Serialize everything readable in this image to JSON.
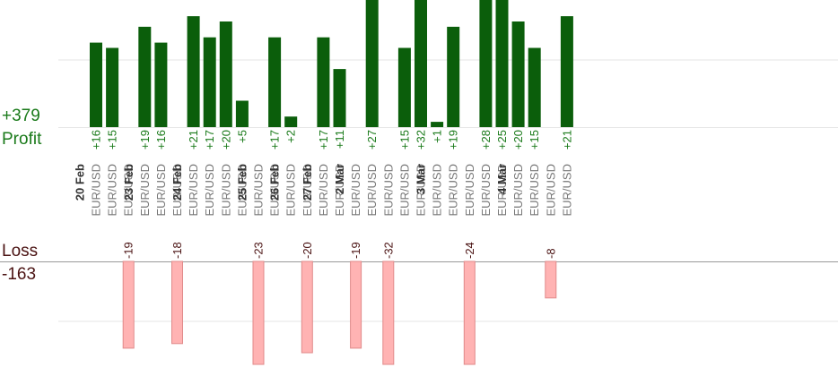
{
  "summary": {
    "profit_total": "+379",
    "profit_label": "Profit",
    "loss_label": "Loss",
    "loss_total": "-163"
  },
  "colors": {
    "profit_bar": "#0b5e0b",
    "loss_bar": "#ffb3b3",
    "loss_bar_border": "#e08a8a",
    "profit_text": "#1a7a1a",
    "loss_text": "#4a1212",
    "grid": "#e6e6e6",
    "baseline": "#999999"
  },
  "chart_data": {
    "type": "bar",
    "grid": true,
    "note_truncated_bars": "bars at the top/bottom edge are clipped in the image",
    "columns": [
      {
        "date": "20 Feb",
        "pair": "EUR/USD",
        "value": 16
      },
      {
        "date": "",
        "pair": "EUR/USD",
        "value": 15
      },
      {
        "date": "",
        "pair": "EUR/USD",
        "value": -19
      },
      {
        "date": "23 Feb",
        "pair": "EUR/USD",
        "value": 19
      },
      {
        "date": "",
        "pair": "EUR/USD",
        "value": 16
      },
      {
        "date": "",
        "pair": "EUR/USD",
        "value": -18
      },
      {
        "date": "24 Feb",
        "pair": "EUR/USD",
        "value": 21
      },
      {
        "date": "",
        "pair": "EUR/USD",
        "value": 17
      },
      {
        "date": "",
        "pair": "EUR/USD",
        "value": 20
      },
      {
        "date": "",
        "pair": "EUR/USD",
        "value": 5
      },
      {
        "date": "25 Feb",
        "pair": "EUR/USD",
        "value": -23
      },
      {
        "date": "",
        "pair": "EUR/USD",
        "value": 17
      },
      {
        "date": "26 Feb",
        "pair": "EUR/USD",
        "value": 2
      },
      {
        "date": "",
        "pair": "EUR/USD",
        "value": -20
      },
      {
        "date": "27 Feb",
        "pair": "EUR/USD",
        "value": 17
      },
      {
        "date": "",
        "pair": "EUR/USD",
        "value": 11
      },
      {
        "date": "2 Mar",
        "pair": "EUR/USD",
        "value": -19
      },
      {
        "date": "",
        "pair": "EUR/USD",
        "value": 27
      },
      {
        "date": "",
        "pair": "EUR/USD",
        "value": -32
      },
      {
        "date": "",
        "pair": "EUR/USD",
        "value": 15
      },
      {
        "date": "",
        "pair": "EUR/USD",
        "value": 32
      },
      {
        "date": "3 Mar",
        "pair": "EUR/USD",
        "value": 1
      },
      {
        "date": "",
        "pair": "EUR/USD",
        "value": 19
      },
      {
        "date": "",
        "pair": "EUR/USD",
        "value": -24
      },
      {
        "date": "",
        "pair": "EUR/USD",
        "value": 28
      },
      {
        "date": "",
        "pair": "EUR/USD",
        "value": 25
      },
      {
        "date": "4 Mar",
        "pair": "EUR/USD",
        "value": 20
      },
      {
        "date": "",
        "pair": "EUR/USD",
        "value": 15
      },
      {
        "date": "",
        "pair": "EUR/USD",
        "value": -8
      },
      {
        "date": "",
        "pair": "EUR/USD",
        "value": 21
      }
    ]
  }
}
